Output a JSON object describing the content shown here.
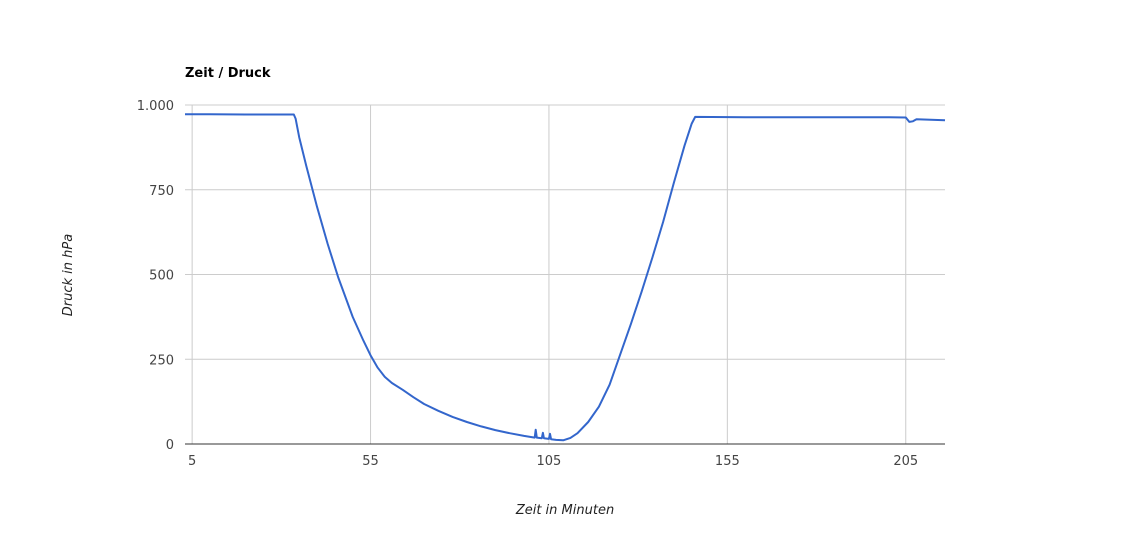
{
  "chart_data": {
    "type": "line",
    "title": "Zeit / Druck",
    "xlabel": "Zeit in Minuten",
    "ylabel": "Druck in hPa",
    "xlim": [
      3,
      216
    ],
    "ylim": [
      0,
      1000
    ],
    "x_ticks": [
      5,
      55,
      105,
      155,
      205
    ],
    "y_ticks": [
      0,
      250,
      500,
      750,
      1000
    ],
    "y_tick_labels": [
      "0",
      "250",
      "500",
      "750",
      "1.000"
    ],
    "grid": true,
    "legend": "none",
    "series": [
      {
        "color": "#3366cc",
        "points": [
          [
            3,
            973
          ],
          [
            10,
            973
          ],
          [
            20,
            972
          ],
          [
            30,
            972
          ],
          [
            33.5,
            972
          ],
          [
            34,
            960
          ],
          [
            35,
            905
          ],
          [
            37,
            820
          ],
          [
            40,
            700
          ],
          [
            43,
            590
          ],
          [
            46,
            490
          ],
          [
            50,
            375
          ],
          [
            53,
            305
          ],
          [
            55,
            262
          ],
          [
            57,
            225
          ],
          [
            59,
            198
          ],
          [
            61,
            180
          ],
          [
            64,
            160
          ],
          [
            67,
            138
          ],
          [
            70,
            118
          ],
          [
            74,
            98
          ],
          [
            78,
            80
          ],
          [
            82,
            65
          ],
          [
            86,
            52
          ],
          [
            90,
            41
          ],
          [
            94,
            32
          ],
          [
            98,
            24
          ],
          [
            101,
            19
          ],
          [
            101.3,
            42
          ],
          [
            101.6,
            19
          ],
          [
            103,
            17
          ],
          [
            103.3,
            33
          ],
          [
            103.6,
            17
          ],
          [
            105,
            15
          ],
          [
            105.3,
            30
          ],
          [
            105.6,
            14
          ],
          [
            107,
            12
          ],
          [
            109,
            11
          ],
          [
            111,
            18
          ],
          [
            113,
            32
          ],
          [
            116,
            65
          ],
          [
            119,
            110
          ],
          [
            122,
            175
          ],
          [
            125,
            265
          ],
          [
            128,
            355
          ],
          [
            131,
            450
          ],
          [
            134,
            550
          ],
          [
            137,
            655
          ],
          [
            140,
            770
          ],
          [
            143,
            880
          ],
          [
            145,
            945
          ],
          [
            146,
            965
          ],
          [
            160,
            964
          ],
          [
            180,
            964
          ],
          [
            200,
            964
          ],
          [
            205,
            963
          ],
          [
            206,
            950
          ],
          [
            207,
            952
          ],
          [
            208,
            958
          ],
          [
            216,
            955
          ]
        ]
      }
    ]
  }
}
